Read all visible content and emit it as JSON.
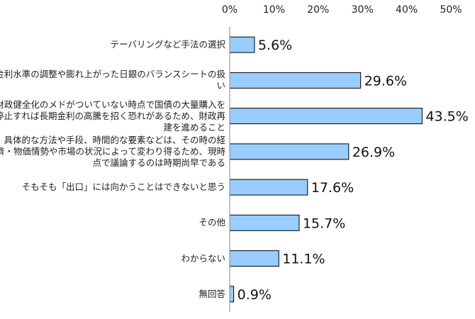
{
  "chart_data": {
    "type": "bar",
    "orientation": "horizontal",
    "categories": [
      "テーバリングなど手法の選択",
      "金利水準の調整や膨れ上がった日銀のバランスシートの扱い",
      "財政健全化のメドがついていない時点で国債の大量購入を停止すれば長期金利の高騰を招く恐れがあるため、財政再建を進めること",
      "具体的な方法や手段、時間的な要素などは、その時の経済・物価情勢や市場の状況によって変わり得るため、現時点で議論するのは時期尚早である",
      "そもそも「出口」には向かうことはできないと思う",
      "その他",
      "わからない",
      "無回答"
    ],
    "values": [
      5.6,
      29.6,
      43.5,
      26.9,
      17.6,
      15.7,
      11.1,
      0.9
    ],
    "value_labels": [
      "5.6%",
      "29.6%",
      "43.5%",
      "26.9%",
      "17.6%",
      "15.7%",
      "11.1%",
      "0.9%"
    ],
    "xlim": [
      0,
      50
    ],
    "x_ticks": [
      0,
      10,
      20,
      30,
      40,
      50
    ],
    "x_tick_labels": [
      "0%",
      "10%",
      "20%",
      "30%",
      "40%",
      "50%"
    ],
    "axis_position": "top",
    "grid": false,
    "legend": "none",
    "bar_color": "#99CCFF",
    "bar_border_color": "#000000"
  }
}
